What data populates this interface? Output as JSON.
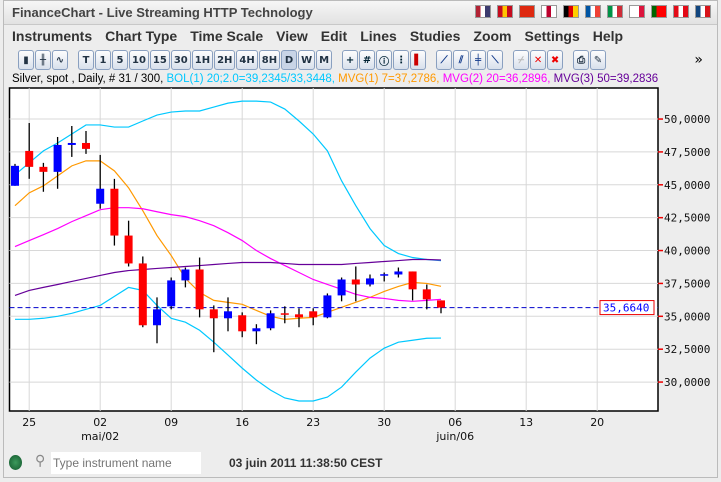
{
  "window": {
    "title": "FinanceChart - Live Streaming HTTP Technology",
    "flags": [
      {
        "code": "us",
        "colors": [
          "#b22234",
          "#fff",
          "#3c3b6e"
        ]
      },
      {
        "code": "es",
        "colors": [
          "#c60b1e",
          "#ffc400",
          "#c60b1e"
        ]
      },
      {
        "code": "cn",
        "colors": [
          "#de2910",
          "#de2910",
          "#de2910"
        ]
      },
      {
        "code": "jp",
        "colors": [
          "#fff",
          "#bc002d",
          "#fff"
        ]
      },
      {
        "code": "de",
        "colors": [
          "#000",
          "#dd0000",
          "#ffce00"
        ]
      },
      {
        "code": "fr",
        "colors": [
          "#0055a4",
          "#fff",
          "#ef4135"
        ]
      },
      {
        "code": "it",
        "colors": [
          "#009246",
          "#fff",
          "#ce2b37"
        ]
      },
      {
        "code": "pl",
        "colors": [
          "#fff",
          "#fff",
          "#dc143c"
        ]
      },
      {
        "code": "pt",
        "colors": [
          "#006600",
          "#ff0000",
          "#ff0000"
        ]
      },
      {
        "code": "tr",
        "colors": [
          "#e30a17",
          "#fff",
          "#e30a17"
        ]
      },
      {
        "code": "cz",
        "colors": [
          "#11457e",
          "#fff",
          "#d7141a"
        ]
      }
    ]
  },
  "menu": [
    "Instruments",
    "Chart Type",
    "Time Scale",
    "View",
    "Edit",
    "Lines",
    "Studies",
    "Zoom",
    "Settings",
    "Help"
  ],
  "toolbar": {
    "chart_types": [
      "candlestick-icon",
      "bar-chart-icon",
      "line-chart-icon"
    ],
    "timescales": [
      "T",
      "1",
      "5",
      "10",
      "15",
      "30",
      "1H",
      "2H",
      "4H",
      "8H",
      "D",
      "W",
      "M"
    ],
    "selected_timescale": "D",
    "tools": [
      "crosshair-icon",
      "grid-icon",
      "info-icon",
      "scale-icon",
      "volume-icon"
    ],
    "lines": [
      "trendline-icon",
      "parallel-lines-icon",
      "horizontal-line-icon",
      "fan-lines-icon"
    ],
    "edit": [
      "delete-disabled-icon",
      "delete-icon",
      "delete-all-icon"
    ],
    "misc": [
      "print-icon",
      "pin-icon"
    ],
    "more": "»"
  },
  "legend": {
    "instrument": "Silver, spot , Daily, # 31 / 300,",
    "bol": "BOL(1) 20;2.0=39,2345/33,3448,",
    "mvg1": "MVG(1) 7=37,2786,",
    "mvg2": "MVG(2) 20=36,2896,",
    "mvg3": "MVG(3) 50=39,2836",
    "colors": {
      "bol": "#00c8ff",
      "mvg1": "#ff9900",
      "mvg2": "#ff00ff",
      "mvg3": "#660099"
    }
  },
  "chart_data": {
    "type": "candlestick",
    "ylim": [
      27800,
      52360
    ],
    "yticks": [
      {
        "v": 50000,
        "label": "50,0000"
      },
      {
        "v": 47500,
        "label": "47,5000"
      },
      {
        "v": 45000,
        "label": "45,0000"
      },
      {
        "v": 42500,
        "label": "42,5000"
      },
      {
        "v": 40000,
        "label": "40,0000"
      },
      {
        "v": 37500,
        "label": "37,5000"
      },
      {
        "v": 35000,
        "label": "35,0000"
      },
      {
        "v": 32500,
        "label": "32,5000"
      },
      {
        "v": 30000,
        "label": "30,0000"
      }
    ],
    "xticks": [
      {
        "i": 1,
        "label": "25"
      },
      {
        "i": 6,
        "label": "02",
        "sub": "mai/02"
      },
      {
        "i": 11,
        "label": "09"
      },
      {
        "i": 16,
        "label": "16"
      },
      {
        "i": 21,
        "label": "23"
      },
      {
        "i": 26,
        "label": "30"
      },
      {
        "i": 31,
        "label": "06",
        "sub": "juin/06"
      },
      {
        "i": 36,
        "label": "13"
      },
      {
        "i": 41,
        "label": "20"
      }
    ],
    "last_price": {
      "value": 35664,
      "label": "35,6640"
    },
    "up_color": "#0000ff",
    "down_color": "#ff0000",
    "ohlc": [
      [
        44925,
        46590,
        44925,
        46440
      ],
      [
        47576,
        49697,
        45455,
        46364
      ],
      [
        46364,
        46667,
        44470,
        45985
      ],
      [
        45985,
        48636,
        44697,
        48030
      ],
      [
        48030,
        49470,
        47120,
        48180
      ],
      [
        48180,
        49090,
        47350,
        47730
      ],
      [
        43560,
        47270,
        43180,
        44700
      ],
      [
        44700,
        45450,
        40380,
        41140
      ],
      [
        41140,
        42270,
        38790,
        39020
      ],
      [
        39020,
        39550,
        34170,
        34320
      ],
      [
        34320,
        36440,
        32950,
        35530
      ],
      [
        35760,
        37950,
        35530,
        37730
      ],
      [
        37730,
        38710,
        37200,
        38560
      ],
      [
        38560,
        39470,
        34920,
        35530
      ],
      [
        35530,
        35830,
        32270,
        34850
      ],
      [
        34850,
        36440,
        33860,
        35380
      ],
      [
        35080,
        35300,
        33410,
        33860
      ],
      [
        33860,
        34400,
        32880,
        34090
      ],
      [
        34090,
        35450,
        33940,
        35230
      ],
      [
        35230,
        35760,
        34470,
        35150
      ],
      [
        35150,
        35610,
        34170,
        34920
      ],
      [
        35380,
        35610,
        34320,
        34920
      ],
      [
        34920,
        36740,
        34850,
        36590
      ],
      [
        36590,
        37950,
        36140,
        37800
      ],
      [
        37800,
        38790,
        36140,
        37420
      ],
      [
        37420,
        38180,
        37270,
        37880
      ],
      [
        38180,
        38330,
        37650,
        38200
      ],
      [
        38180,
        38710,
        37950,
        38410
      ],
      [
        38410,
        38410,
        36210,
        37050
      ],
      [
        37050,
        37420,
        35530,
        36290
      ],
      [
        36210,
        36210,
        35230,
        35664
      ]
    ],
    "series": [
      {
        "name": "BOL(1) upper",
        "color": "#00c8ff",
        "values": [
          45760,
          46670,
          47580,
          48180,
          48860,
          49550,
          49550,
          49390,
          49390,
          49850,
          50300,
          50530,
          50610,
          50610,
          50910,
          51210,
          51360,
          51360,
          51290,
          50760,
          49850,
          48860,
          47580,
          45300,
          43410,
          41670,
          40380,
          39770,
          39470,
          39320,
          39235
        ]
      },
      {
        "name": "BOL(1) lower",
        "color": "#00c8ff",
        "values": [
          34770,
          34770,
          34850,
          35000,
          35230,
          35530,
          35830,
          36520,
          37200,
          36970,
          35830,
          34850,
          34550,
          33940,
          33030,
          32050,
          31060,
          30150,
          29390,
          28790,
          28560,
          28560,
          28860,
          29620,
          30760,
          31820,
          32580,
          33030,
          33180,
          33330,
          33345
        ]
      },
      {
        "name": "MVG(1) 7",
        "color": "#ff9900",
        "values": [
          43410,
          44390,
          44920,
          45680,
          46440,
          46820,
          46820,
          46060,
          44770,
          43030,
          41140,
          39620,
          37880,
          36820,
          36210,
          36060,
          35910,
          35450,
          35000,
          34770,
          34850,
          34920,
          35300,
          35680,
          36060,
          36440,
          36890,
          37270,
          37580,
          37500,
          37279
        ]
      },
      {
        "name": "MVG(2) 20",
        "color": "#ff00ff",
        "values": [
          40300,
          40760,
          41210,
          41670,
          42200,
          42650,
          43110,
          43260,
          43260,
          43180,
          42950,
          42730,
          42580,
          42270,
          41890,
          41360,
          40760,
          40000,
          39390,
          38860,
          38330,
          37800,
          37420,
          37050,
          36670,
          36440,
          36360,
          36210,
          36140,
          36210,
          36290
        ]
      },
      {
        "name": "MVG(3) 50",
        "color": "#660099",
        "values": [
          36590,
          36970,
          37200,
          37420,
          37650,
          37880,
          38110,
          38330,
          38480,
          38560,
          38640,
          38710,
          38790,
          38860,
          38940,
          39020,
          39090,
          39090,
          39090,
          39020,
          38940,
          38940,
          38940,
          38940,
          39020,
          39090,
          39170,
          39240,
          39320,
          39320,
          39284
        ]
      }
    ]
  },
  "status": {
    "search_placeholder": "Type instrument name",
    "datetime": "03 juin 2011 11:38:50 CEST"
  }
}
